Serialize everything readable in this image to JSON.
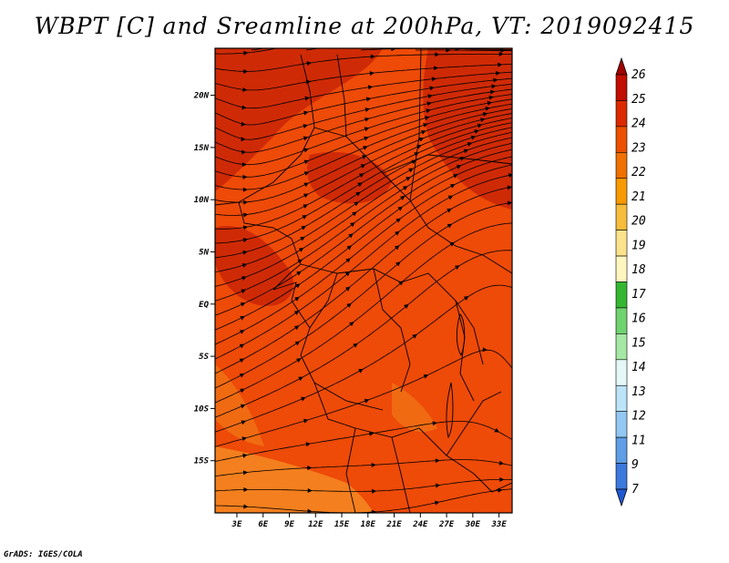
{
  "title": "WBPT [C] and Sreamline at 200hPa, VT: 2019092415",
  "credit": "GrADS: IGES/COLA",
  "map": {
    "lat_range": [
      -20,
      24.5
    ],
    "lon_range": [
      0.5,
      34.5
    ],
    "lat_ticks": [
      {
        "value": 20,
        "label": "20N"
      },
      {
        "value": 15,
        "label": "15N"
      },
      {
        "value": 10,
        "label": "10N"
      },
      {
        "value": 5,
        "label": "5N"
      },
      {
        "value": 0,
        "label": "EQ"
      },
      {
        "value": -5,
        "label": "5S"
      },
      {
        "value": -10,
        "label": "10S"
      },
      {
        "value": -15,
        "label": "15S"
      }
    ],
    "lon_ticks": [
      {
        "value": 3,
        "label": "3E"
      },
      {
        "value": 6,
        "label": "6E"
      },
      {
        "value": 9,
        "label": "9E"
      },
      {
        "value": 12,
        "label": "12E"
      },
      {
        "value": 15,
        "label": "15E"
      },
      {
        "value": 18,
        "label": "18E"
      },
      {
        "value": 21,
        "label": "21E"
      },
      {
        "value": 24,
        "label": "24E"
      },
      {
        "value": 27,
        "label": "27E"
      },
      {
        "value": 30,
        "label": "30E"
      },
      {
        "value": 33,
        "label": "33E"
      }
    ],
    "fill_colors": {
      "base": "#ee4a08",
      "dark": "#cf2a06",
      "warm": "#f06a12",
      "orange": "#f47f1e"
    },
    "streamline_color": "#000000",
    "border_color": "#000000"
  },
  "colorbar": {
    "labels": [
      "26",
      "25",
      "24",
      "23",
      "22",
      "21",
      "20",
      "19",
      "18",
      "17",
      "16",
      "15",
      "14",
      "13",
      "12",
      "11",
      "9",
      "7"
    ],
    "colors": [
      "#a00000",
      "#c00e00",
      "#dc2a00",
      "#ec5000",
      "#f07000",
      "#f79a00",
      "#f7bc3c",
      "#fbe28c",
      "#fff6bf",
      "#35b632",
      "#6fd36f",
      "#a5e8a5",
      "#e5f8f8",
      "#bce4f8",
      "#93c8f2",
      "#5e9ee6",
      "#3c79dc",
      "#1e5ad2"
    ]
  }
}
